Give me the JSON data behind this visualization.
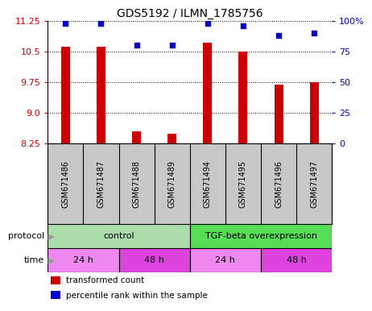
{
  "title": "GDS5192 / ILMN_1785756",
  "samples": [
    "GSM671486",
    "GSM671487",
    "GSM671488",
    "GSM671489",
    "GSM671494",
    "GSM671495",
    "GSM671496",
    "GSM671497"
  ],
  "bar_values": [
    10.62,
    10.62,
    8.55,
    8.48,
    10.72,
    10.5,
    9.7,
    9.75
  ],
  "dot_values": [
    98,
    98,
    80,
    80,
    98,
    96,
    88,
    90
  ],
  "ylim_left": [
    8.25,
    11.25
  ],
  "ylim_right": [
    0,
    100
  ],
  "yticks_left": [
    8.25,
    9.0,
    9.75,
    10.5,
    11.25
  ],
  "yticks_right": [
    0,
    25,
    50,
    75,
    100
  ],
  "bar_color": "#cc0000",
  "dot_color": "#0000cc",
  "bar_bottom": 8.25,
  "bar_width": 0.25,
  "protocol_labels": [
    [
      "control",
      0,
      4
    ],
    [
      "TGF-beta overexpression",
      4,
      8
    ]
  ],
  "protocol_color_left": "#aaddaa",
  "protocol_color_right": "#55dd55",
  "time_labels": [
    [
      "24 h",
      0,
      2
    ],
    [
      "48 h",
      2,
      4
    ],
    [
      "24 h",
      4,
      6
    ],
    [
      "48 h",
      6,
      8
    ]
  ],
  "time_color_light": "#ee88ee",
  "time_color_dark": "#dd44dd",
  "legend_items": [
    {
      "color": "#cc0000",
      "label": "transformed count"
    },
    {
      "color": "#0000cc",
      "label": "percentile rank within the sample"
    }
  ],
  "gridline_color": "black",
  "gridline_style": "dotted",
  "sample_area_color": "#c8c8c8",
  "left_tick_color": "#cc0000",
  "right_tick_color": "#0000cc",
  "title_fontsize": 10,
  "tick_fontsize": 8,
  "sample_fontsize": 7,
  "label_fontsize": 8,
  "legend_fontsize": 7.5
}
